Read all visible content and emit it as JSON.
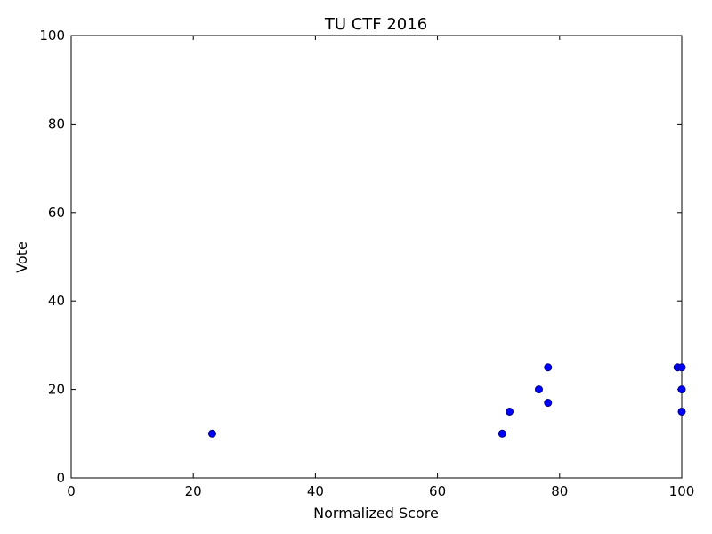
{
  "chart_data": {
    "type": "scatter",
    "title": "TU CTF 2016",
    "xlabel": "Normalized Score",
    "ylabel": "Vote",
    "xlim": [
      0,
      100
    ],
    "ylim": [
      0,
      100
    ],
    "x_ticks": [
      0,
      20,
      40,
      60,
      80,
      100
    ],
    "y_ticks": [
      0,
      20,
      40,
      60,
      80,
      100
    ],
    "grid": false,
    "legend": "none",
    "marker_color": "#0000ff",
    "marker_edge_color": "#000080",
    "points": [
      {
        "x": 23.1,
        "y": 10
      },
      {
        "x": 70.6,
        "y": 10
      },
      {
        "x": 71.8,
        "y": 15
      },
      {
        "x": 76.6,
        "y": 20
      },
      {
        "x": 78.1,
        "y": 17
      },
      {
        "x": 78.1,
        "y": 25
      },
      {
        "x": 99.3,
        "y": 25
      },
      {
        "x": 100,
        "y": 25
      },
      {
        "x": 100,
        "y": 20
      },
      {
        "x": 100,
        "y": 15
      }
    ]
  }
}
